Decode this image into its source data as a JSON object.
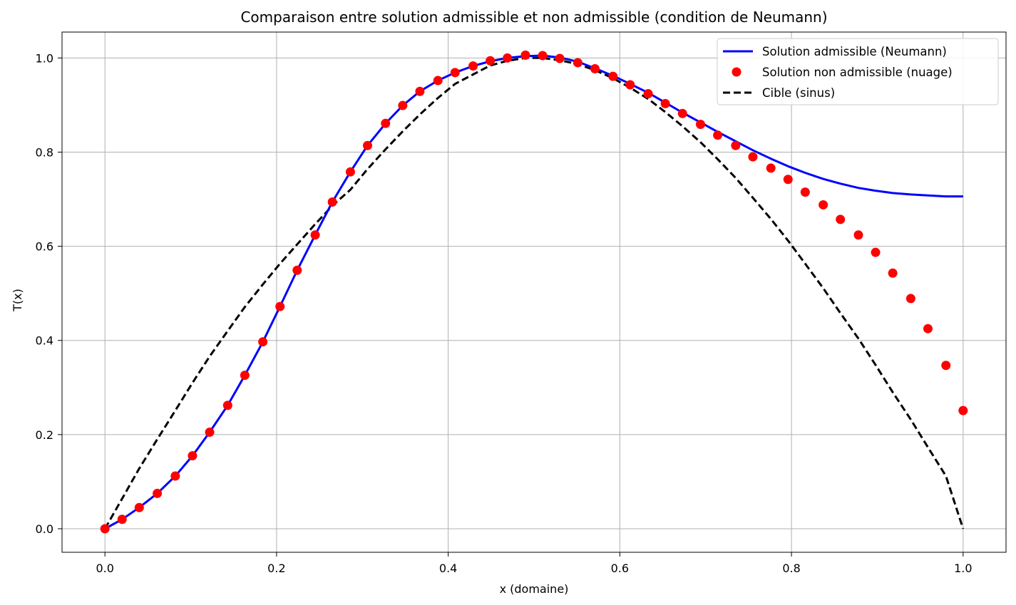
{
  "chart_data": {
    "type": "line",
    "title": "Comparaison entre solution admissible et non admissible (condition de Neumann)",
    "xlabel": "x (domaine)",
    "ylabel": "T(x)",
    "xlim": [
      -0.05,
      1.05
    ],
    "ylim": [
      -0.05,
      1.055
    ],
    "xticks": [
      0.0,
      0.2,
      0.4,
      0.6,
      0.8,
      1.0
    ],
    "xtick_labels": [
      "0.0",
      "0.2",
      "0.4",
      "0.6",
      "0.8",
      "1.0"
    ],
    "yticks": [
      0.0,
      0.2,
      0.4,
      0.6,
      0.8,
      1.0
    ],
    "ytick_labels": [
      "0.0",
      "0.2",
      "0.4",
      "0.6",
      "0.8",
      "1.0"
    ],
    "grid": true,
    "legend_position": "top-right",
    "series": [
      {
        "name": "Solution admissible (Neumann)",
        "kind": "line",
        "style": "solid",
        "color": "#0000ff",
        "x": [
          0.0,
          0.02,
          0.04,
          0.061,
          0.082,
          0.102,
          0.122,
          0.143,
          0.163,
          0.184,
          0.204,
          0.224,
          0.245,
          0.265,
          0.286,
          0.306,
          0.327,
          0.347,
          0.367,
          0.388,
          0.408,
          0.429,
          0.449,
          0.469,
          0.49,
          0.51,
          0.53,
          0.551,
          0.571,
          0.592,
          0.612,
          0.633,
          0.653,
          0.673,
          0.694,
          0.714,
          0.735,
          0.755,
          0.776,
          0.796,
          0.816,
          0.837,
          0.857,
          0.878,
          0.898,
          0.918,
          0.939,
          0.959,
          0.98,
          1.0
        ],
        "y": [
          0.0,
          0.02,
          0.045,
          0.075,
          0.112,
          0.155,
          0.205,
          0.262,
          0.326,
          0.397,
          0.472,
          0.549,
          0.624,
          0.694,
          0.758,
          0.814,
          0.861,
          0.899,
          0.929,
          0.952,
          0.969,
          0.983,
          0.993,
          1.0,
          1.004,
          1.005,
          1.001,
          0.992,
          0.978,
          0.962,
          0.945,
          0.926,
          0.905,
          0.884,
          0.863,
          0.843,
          0.823,
          0.804,
          0.786,
          0.77,
          0.756,
          0.743,
          0.733,
          0.724,
          0.718,
          0.713,
          0.71,
          0.708,
          0.706,
          0.706
        ]
      },
      {
        "name": "Solution non admissible (nuage)",
        "kind": "scatter",
        "color": "#ff0000",
        "x": [
          0.0,
          0.02,
          0.04,
          0.061,
          0.082,
          0.102,
          0.122,
          0.143,
          0.163,
          0.184,
          0.204,
          0.224,
          0.245,
          0.265,
          0.286,
          0.306,
          0.327,
          0.347,
          0.367,
          0.388,
          0.408,
          0.429,
          0.449,
          0.469,
          0.49,
          0.51,
          0.53,
          0.551,
          0.571,
          0.592,
          0.612,
          0.633,
          0.653,
          0.673,
          0.694,
          0.714,
          0.735,
          0.755,
          0.776,
          0.796,
          0.816,
          0.837,
          0.857,
          0.878,
          0.898,
          0.918,
          0.939,
          0.959,
          0.98,
          1.0
        ],
        "y": [
          0.0,
          0.02,
          0.045,
          0.075,
          0.112,
          0.155,
          0.205,
          0.262,
          0.326,
          0.397,
          0.472,
          0.549,
          0.624,
          0.694,
          0.758,
          0.814,
          0.861,
          0.899,
          0.929,
          0.952,
          0.969,
          0.983,
          0.994,
          1.0,
          1.006,
          1.005,
          0.999,
          0.99,
          0.977,
          0.961,
          0.943,
          0.924,
          0.903,
          0.882,
          0.859,
          0.836,
          0.814,
          0.79,
          0.766,
          0.742,
          0.715,
          0.688,
          0.657,
          0.624,
          0.587,
          0.543,
          0.489,
          0.425,
          0.347,
          0.251
        ]
      },
      {
        "name": "Cible (sinus)",
        "kind": "line",
        "style": "dashed",
        "color": "#000000",
        "x": [
          0.0,
          0.02,
          0.04,
          0.061,
          0.082,
          0.102,
          0.122,
          0.143,
          0.163,
          0.184,
          0.204,
          0.224,
          0.245,
          0.265,
          0.286,
          0.306,
          0.327,
          0.347,
          0.367,
          0.388,
          0.408,
          0.429,
          0.449,
          0.469,
          0.49,
          0.51,
          0.53,
          0.551,
          0.571,
          0.592,
          0.612,
          0.633,
          0.653,
          0.673,
          0.694,
          0.714,
          0.735,
          0.755,
          0.776,
          0.796,
          0.816,
          0.837,
          0.857,
          0.878,
          0.898,
          0.918,
          0.939,
          0.959,
          0.98,
          1.0
        ],
        "y": [
          0.0,
          0.064,
          0.128,
          0.19,
          0.251,
          0.31,
          0.366,
          0.42,
          0.471,
          0.519,
          0.563,
          0.604,
          0.647,
          0.686,
          0.72,
          0.764,
          0.806,
          0.844,
          0.88,
          0.915,
          0.945,
          0.965,
          0.984,
          0.994,
          1.0,
          1.0,
          0.995,
          0.987,
          0.974,
          0.957,
          0.937,
          0.913,
          0.885,
          0.855,
          0.821,
          0.785,
          0.745,
          0.703,
          0.658,
          0.612,
          0.563,
          0.511,
          0.458,
          0.404,
          0.348,
          0.29,
          0.232,
          0.173,
          0.112,
          0.0
        ]
      }
    ]
  }
}
